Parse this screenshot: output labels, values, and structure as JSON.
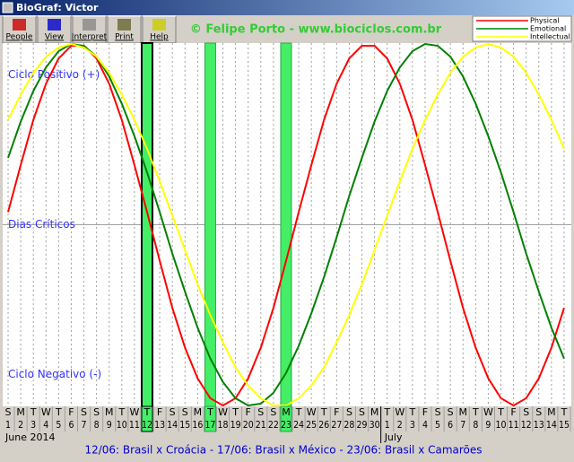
{
  "window": {
    "title": "BioGraf: Victor"
  },
  "toolbar": {
    "buttons": [
      "People",
      "View",
      "Interpret",
      "Print",
      "Help"
    ]
  },
  "watermark": "© Felipe Porto - www.biociclos.com.br",
  "status": "12/06: Brasil x Croácia - 17/06: Brasil x México - 23/06: Brasil x Camarões",
  "chart_data": {
    "type": "line",
    "categories": [
      1,
      2,
      3,
      4,
      5,
      6,
      7,
      8,
      9,
      10,
      11,
      12,
      13,
      14,
      15,
      16,
      17,
      18,
      19,
      20,
      21,
      22,
      23,
      24,
      25,
      26,
      27,
      28,
      29,
      30,
      1,
      2,
      3,
      4,
      5,
      6,
      7,
      8,
      9,
      10,
      11,
      12,
      13,
      14,
      15
    ],
    "weekdays": [
      "S",
      "M",
      "T",
      "W",
      "T",
      "F",
      "S",
      "S",
      "M",
      "T",
      "W",
      "T",
      "F",
      "S",
      "S",
      "M",
      "T",
      "W",
      "T",
      "F",
      "S",
      "S",
      "M",
      "T",
      "W",
      "T",
      "F",
      "S",
      "S",
      "M",
      "T",
      "W",
      "T",
      "F",
      "S",
      "S",
      "M",
      "T",
      "W",
      "T",
      "F",
      "S",
      "S",
      "M",
      "T"
    ],
    "month_labels": [
      "June 2014",
      "July"
    ],
    "highlights": [
      12,
      17,
      23
    ],
    "ylim": [
      -100,
      100
    ],
    "yticks": [
      {
        "value": 83,
        "label": "Ciclo Positivo (+)"
      },
      {
        "value": 0,
        "label": "Dias Críticos"
      },
      {
        "value": -83,
        "label": "Ciclo Negativo (-)"
      }
    ],
    "legend": "upper right",
    "series": [
      {
        "name": "Physical",
        "color": "#ff0000",
        "values": [
          7,
          33,
          58,
          78,
          92,
          99,
          99,
          92,
          78,
          58,
          33,
          7,
          -20,
          -46,
          -68,
          -85,
          -96,
          -100,
          -96,
          -85,
          -68,
          -46,
          -20,
          7,
          33,
          58,
          78,
          92,
          99,
          99,
          92,
          78,
          58,
          33,
          7,
          -20,
          -46,
          -68,
          -85,
          -96,
          -100,
          -96,
          -85,
          -68,
          -46
        ]
      },
      {
        "name": "Emotional",
        "color": "#008000",
        "values": [
          37,
          57,
          74,
          87,
          96,
          100,
          99,
          93,
          82,
          67,
          49,
          29,
          7,
          -16,
          -37,
          -57,
          -74,
          -87,
          -96,
          -100,
          -99,
          -93,
          -82,
          -67,
          -49,
          -29,
          -7,
          16,
          37,
          57,
          74,
          87,
          96,
          100,
          99,
          93,
          82,
          67,
          49,
          29,
          7,
          -16,
          -37,
          -57,
          -74
        ]
      },
      {
        "name": "Intellectual",
        "color": "#ffff00",
        "values": [
          58,
          72,
          84,
          93,
          98,
          100,
          98,
          93,
          84,
          72,
          58,
          42,
          24,
          5,
          -14,
          -33,
          -50,
          -65,
          -79,
          -89,
          -96,
          -100,
          -100,
          -96,
          -89,
          -79,
          -65,
          -50,
          -33,
          -14,
          5,
          24,
          42,
          58,
          72,
          84,
          93,
          98,
          100,
          98,
          93,
          84,
          72,
          58,
          42
        ]
      }
    ]
  }
}
